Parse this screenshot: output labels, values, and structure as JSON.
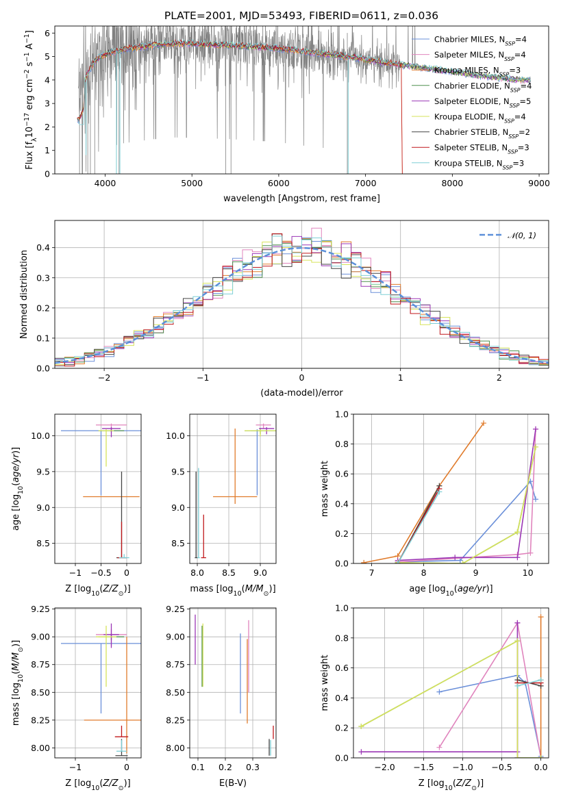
{
  "figure_title": "PLATE=2001, MJD=53493, FIBERID=0611, z=0.036",
  "colors": {
    "Chabrier MILES": "#6a8fd9",
    "Salpeter MILES": "#e084bd",
    "Kroupa MILES": "#e07b2b",
    "Chabrier ELODIE": "#4f8f4f",
    "Salpeter ELODIE": "#9a35b5",
    "Kroupa ELODIE": "#d6e35a",
    "Chabrier STELIB": "#444444",
    "Salpeter STELIB": "#c0171a",
    "Kroupa STELIB": "#7ecfd6",
    "data": "#808080",
    "gaussian": "#5b8fd9"
  },
  "chart_data": [
    {
      "id": "spectrum",
      "type": "line",
      "title": "PLATE=2001, MJD=53493, FIBERID=0611, z=0.036",
      "xlabel": "wavelength [Angstrom, rest frame]",
      "ylabel": "Flux [f_λ 10^-17 erg cm^-2 s^-1 A^-1]",
      "xlim": [
        3420,
        9110
      ],
      "ylim": [
        0,
        6.3
      ],
      "xticks": [
        4000,
        5000,
        6000,
        7000,
        8000,
        9000
      ],
      "yticks": [
        0,
        1,
        2,
        3,
        4,
        5,
        6
      ],
      "legend": "top-right",
      "series": [
        {
          "name": "Chabrier MILES, N_SSP=4"
        },
        {
          "name": "Salpeter MILES, N_SSP=4"
        },
        {
          "name": "Kroupa MILES, N_SSP=3"
        },
        {
          "name": "Chabrier ELODIE, N_SSP=4"
        },
        {
          "name": "Salpeter ELODIE, N_SSP=5"
        },
        {
          "name": "Kroupa ELODIE, N_SSP=4"
        },
        {
          "name": "Chabrier STELIB, N_SSP=2"
        },
        {
          "name": "Salpeter STELIB, N_SSP=3"
        },
        {
          "name": "Kroupa STELIB, N_SSP=3"
        }
      ],
      "continuum": {
        "x": [
          3700,
          3800,
          3900,
          4000,
          4200,
          4400,
          4600,
          4800,
          5000,
          5300,
          5600,
          6000,
          6400,
          6800,
          7200,
          7600,
          8000,
          8400,
          8800
        ],
        "y": [
          3.3,
          4.3,
          4.9,
          5.1,
          5.3,
          5.4,
          5.5,
          5.55,
          5.55,
          5.5,
          5.45,
          5.35,
          5.15,
          5.0,
          4.75,
          4.55,
          4.35,
          4.15,
          4.0
        ]
      }
    },
    {
      "id": "residuals",
      "type": "histogram",
      "xlabel": "(data-model)/error",
      "ylabel": "Normed distribution",
      "xlim": [
        -2.5,
        2.5
      ],
      "ylim": [
        0,
        0.49
      ],
      "xticks": [
        -2,
        -1,
        0,
        1,
        2
      ],
      "yticks": [
        0.0,
        0.1,
        0.2,
        0.3,
        0.4
      ],
      "legend_label": "N(0,1)",
      "legend": "top-right"
    },
    {
      "id": "age_vs_Z",
      "type": "errorbar",
      "xlabel": "Z [log10(Z/Z⊙)]",
      "ylabel": "age [log10(age/yr)]",
      "xlim": [
        -1.4,
        0.28
      ],
      "ylim": [
        8.22,
        10.3
      ],
      "xticks": [
        -1,
        -0.5,
        0
      ],
      "yticks": [
        8.5,
        9.0,
        9.5,
        10.0
      ],
      "points": [
        {
          "model": "Chabrier MILES",
          "x": -0.5,
          "y": 10.07,
          "xerr": 0.78,
          "yerr_low": 0.9,
          "yerr_high": 0.0
        },
        {
          "model": "Salpeter MILES",
          "x": -0.3,
          "y": 10.15,
          "xerr": 0.3,
          "yerr_low": 0.07,
          "yerr_high": 0.02
        },
        {
          "model": "Kroupa MILES",
          "x": -0.3,
          "y": 9.15,
          "xerr": 0.55,
          "yerr_low": 0.0,
          "yerr_high": 0.0
        },
        {
          "model": "Chabrier ELODIE",
          "x": -0.3,
          "y": 10.07,
          "xerr": 0.25,
          "yerr_low": 0.02,
          "yerr_high": 0.02
        },
        {
          "model": "Salpeter ELODIE",
          "x": -0.3,
          "y": 10.1,
          "xerr": 0.18,
          "yerr_low": 0.12,
          "yerr_high": 0.02
        },
        {
          "model": "Kroupa ELODIE",
          "x": -0.4,
          "y": 10.07,
          "xerr": 0.15,
          "yerr_low": 0.5,
          "yerr_high": 0.02
        },
        {
          "model": "Chabrier STELIB",
          "x": -0.1,
          "y": 8.3,
          "xerr": 0.1,
          "yerr_low": 0.0,
          "yerr_high": 1.2
        },
        {
          "model": "Salpeter STELIB",
          "x": -0.1,
          "y": 8.3,
          "xerr": 0.08,
          "yerr_low": 0.0,
          "yerr_high": 0.5
        },
        {
          "model": "Kroupa STELIB",
          "x": -0.05,
          "y": 8.3,
          "xerr": 0.1,
          "yerr_low": 0.0,
          "yerr_high": 0.05
        }
      ]
    },
    {
      "id": "age_vs_mass",
      "type": "errorbar",
      "xlabel": "mass [log10(M/M⊙)]",
      "ylabel": "",
      "xlim": [
        7.88,
        9.25
      ],
      "ylim": [
        8.22,
        10.3
      ],
      "xticks": [
        8.0,
        8.5,
        9.0
      ],
      "yticks": [
        8.5,
        9.0,
        9.5,
        10.0
      ],
      "points": [
        {
          "model": "Chabrier MILES",
          "x": 8.95,
          "y": 10.07,
          "xerr": 0.1,
          "yerr_low": 0.9,
          "yerr_high": 0.02
        },
        {
          "model": "Salpeter MILES",
          "x": 9.05,
          "y": 10.15,
          "xerr": 0.12,
          "yerr_low": 0.05,
          "yerr_high": 0.02
        },
        {
          "model": "Kroupa MILES",
          "x": 8.6,
          "y": 9.15,
          "xerr": 0.35,
          "yerr_low": 0.1,
          "yerr_high": 0.95
        },
        {
          "model": "Chabrier ELODIE",
          "x": 9.0,
          "y": 10.07,
          "xerr": 0.25,
          "yerr_low": 0.05,
          "yerr_high": 0.03
        },
        {
          "model": "Salpeter ELODIE",
          "x": 9.1,
          "y": 10.1,
          "xerr": 0.12,
          "yerr_low": 0.08,
          "yerr_high": 0.02
        },
        {
          "model": "Kroupa ELODIE",
          "x": 9.0,
          "y": 10.07,
          "xerr": 0.25,
          "yerr_low": 0.08,
          "yerr_high": 0.02
        },
        {
          "model": "Chabrier STELIB",
          "x": 7.98,
          "y": 8.3,
          "xerr": 0.02,
          "yerr_low": 0.0,
          "yerr_high": 1.2
        },
        {
          "model": "Salpeter STELIB",
          "x": 8.1,
          "y": 8.3,
          "xerr": 0.04,
          "yerr_low": 0.0,
          "yerr_high": 0.6
        },
        {
          "model": "Kroupa STELIB",
          "x": 8.02,
          "y": 8.3,
          "xerr": 0.02,
          "yerr_low": 0.0,
          "yerr_high": 1.25
        }
      ]
    },
    {
      "id": "massweight_vs_age",
      "type": "line",
      "xlabel": "age [log10(age/yr)]",
      "ylabel": "mass weight",
      "xlim": [
        6.65,
        10.4
      ],
      "ylim": [
        0,
        1.0
      ],
      "xticks": [
        7,
        8,
        9,
        10
      ],
      "yticks": [
        0.0,
        0.2,
        0.4,
        0.6,
        0.8,
        1.0
      ],
      "series": [
        {
          "model": "Chabrier MILES",
          "x": [
            7.5,
            8.7,
            10.05,
            10.15
          ],
          "y": [
            0.01,
            0.02,
            0.55,
            0.43
          ]
        },
        {
          "model": "Salpeter MILES",
          "x": [
            7.5,
            9.8,
            10.05,
            10.15
          ],
          "y": [
            0.01,
            0.06,
            0.07,
            0.9
          ]
        },
        {
          "model": "Kroupa MILES",
          "x": [
            6.85,
            7.5,
            8.3,
            9.15
          ],
          "y": [
            0.005,
            0.05,
            0.52,
            0.94
          ]
        },
        {
          "model": "Chabrier ELODIE",
          "x": [
            7.5,
            8.75,
            9.8,
            10.15
          ],
          "y": [
            0.005,
            0.0,
            0.21,
            0.78
          ]
        },
        {
          "model": "Salpeter ELODIE",
          "x": [
            7.5,
            8.6,
            9.8,
            10.15
          ],
          "y": [
            0.02,
            0.04,
            0.04,
            0.9
          ]
        },
        {
          "model": "Kroupa ELODIE",
          "x": [
            7.5,
            8.75,
            9.8,
            10.15
          ],
          "y": [
            0.005,
            0.0,
            0.21,
            0.78
          ]
        },
        {
          "model": "Chabrier STELIB",
          "x": [
            7.5,
            8.3
          ],
          "y": [
            0.0,
            0.52
          ]
        },
        {
          "model": "Salpeter STELIB",
          "x": [
            7.5,
            8.3
          ],
          "y": [
            0.0,
            0.5
          ]
        },
        {
          "model": "Kroupa STELIB",
          "x": [
            7.5,
            8.3
          ],
          "y": [
            0.0,
            0.48
          ]
        }
      ]
    },
    {
      "id": "mass_vs_Z",
      "type": "errorbar",
      "xlabel": "Z [log10(Z/Z⊙)]",
      "ylabel": "mass [log10(M/M⊙)]",
      "xlim": [
        -1.4,
        0.28
      ],
      "ylim": [
        7.91,
        9.26
      ],
      "xticks": [
        -1,
        0
      ],
      "yticks": [
        8.0,
        8.25,
        8.5,
        8.75,
        9.0,
        9.25
      ],
      "points": [
        {
          "model": "Chabrier MILES",
          "x": -0.5,
          "y": 8.94,
          "xerr": 0.78,
          "yerr_low": 0.63,
          "yerr_high": 0.0
        },
        {
          "model": "Salpeter MILES",
          "x": -0.3,
          "y": 9.02,
          "xerr": 0.3,
          "yerr_low": 0.1,
          "yerr_high": 0.05
        },
        {
          "model": "Kroupa MILES",
          "x": 0.0,
          "y": 8.25,
          "xerr": 0.83,
          "yerr_low": 0.3,
          "yerr_high": 0.75
        },
        {
          "model": "Chabrier ELODIE",
          "x": -0.3,
          "y": 9.0,
          "xerr": 0.25,
          "yerr_low": 0.03,
          "yerr_high": 0.03
        },
        {
          "model": "Salpeter ELODIE",
          "x": -0.3,
          "y": 9.02,
          "xerr": 0.15,
          "yerr_low": 0.12,
          "yerr_high": 0.1
        },
        {
          "model": "Kroupa ELODIE",
          "x": -0.4,
          "y": 9.0,
          "xerr": 0.2,
          "yerr_low": 0.45,
          "yerr_high": 0.1
        },
        {
          "model": "Chabrier STELIB",
          "x": -0.1,
          "y": 7.93,
          "xerr": 0.12,
          "yerr_low": 0.0,
          "yerr_high": 0.15
        },
        {
          "model": "Salpeter STELIB",
          "x": -0.1,
          "y": 8.1,
          "xerr": 0.13,
          "yerr_low": 0.0,
          "yerr_high": 0.1
        },
        {
          "model": "Kroupa STELIB",
          "x": -0.1,
          "y": 7.97,
          "xerr": 0.1,
          "yerr_low": 0.0,
          "yerr_high": 0.1
        }
      ]
    },
    {
      "id": "mass_vs_ebv",
      "type": "errorbar",
      "xlabel": "E(B-V)",
      "ylabel": "",
      "xlim": [
        0.07,
        0.385
      ],
      "ylim": [
        7.91,
        9.26
      ],
      "xticks": [
        0.1,
        0.2,
        0.3
      ],
      "yticks": [
        8.0,
        8.25,
        8.5,
        8.75,
        9.0,
        9.25
      ],
      "points": [
        {
          "model": "Chabrier MILES",
          "x": 0.255,
          "y1": 8.31,
          "y2": 9.03
        },
        {
          "model": "Salpeter MILES",
          "x": 0.285,
          "y1": 8.5,
          "y2": 9.15
        },
        {
          "model": "Kroupa MILES",
          "x": 0.28,
          "y1": 8.22,
          "y2": 8.98
        },
        {
          "model": "Chabrier ELODIE",
          "x": 0.115,
          "y1": 8.55,
          "y2": 9.1
        },
        {
          "model": "Salpeter ELODIE",
          "x": 0.09,
          "y1": 8.75,
          "y2": 9.2
        },
        {
          "model": "Kroupa ELODIE",
          "x": 0.118,
          "y1": 8.55,
          "y2": 9.12
        },
        {
          "model": "Chabrier STELIB",
          "x": 0.36,
          "y1": 7.93,
          "y2": 8.08
        },
        {
          "model": "Salpeter STELIB",
          "x": 0.375,
          "y1": 8.08,
          "y2": 8.2
        },
        {
          "model": "Kroupa STELIB",
          "x": 0.365,
          "y1": 7.93,
          "y2": 8.07
        }
      ]
    },
    {
      "id": "massweight_vs_Z",
      "type": "line",
      "xlabel": "Z [log10(Z/Z⊙)]",
      "ylabel": "mass weight",
      "xlim": [
        -2.4,
        0.1
      ],
      "ylim": [
        0,
        1.0
      ],
      "xticks": [
        -2.0,
        -1.5,
        -1.0,
        -0.5,
        0.0
      ],
      "yticks": [
        0.0,
        0.2,
        0.4,
        0.6,
        0.8,
        1.0
      ],
      "series": [
        {
          "model": "Chabrier MILES",
          "x": [
            -1.3,
            -0.3,
            -0.2,
            0.0
          ],
          "y": [
            0.44,
            0.55,
            0.5,
            0.01
          ]
        },
        {
          "model": "Salpeter MILES",
          "x": [
            -1.3,
            -0.3,
            -0.3,
            0.0
          ],
          "y": [
            0.07,
            0.9,
            0.9,
            0.0
          ]
        },
        {
          "model": "Kroupa MILES",
          "x": [
            0.0,
            0.0,
            0.0
          ],
          "y": [
            0.0,
            0.52,
            0.94
          ]
        },
        {
          "model": "Chabrier ELODIE",
          "x": [
            -2.3,
            -0.3,
            -0.3,
            0.0
          ],
          "y": [
            0.21,
            0.78,
            0.0,
            0.0
          ]
        },
        {
          "model": "Salpeter ELODIE",
          "x": [
            -2.3,
            -0.3,
            -0.3,
            -0.3
          ],
          "y": [
            0.04,
            0.04,
            0.9,
            0.0
          ]
        },
        {
          "model": "Kroupa ELODIE",
          "x": [
            -2.3,
            -0.3,
            -0.3,
            0.0
          ],
          "y": [
            0.21,
            0.78,
            0.0,
            0.0
          ]
        },
        {
          "model": "Chabrier STELIB",
          "x": [
            -0.3,
            0.0
          ],
          "y": [
            0.52,
            0.48
          ]
        },
        {
          "model": "Salpeter STELIB",
          "x": [
            -0.3,
            0.0
          ],
          "y": [
            0.5,
            0.5
          ]
        },
        {
          "model": "Kroupa STELIB",
          "x": [
            -0.3,
            0.0
          ],
          "y": [
            0.48,
            0.52
          ]
        }
      ]
    }
  ]
}
